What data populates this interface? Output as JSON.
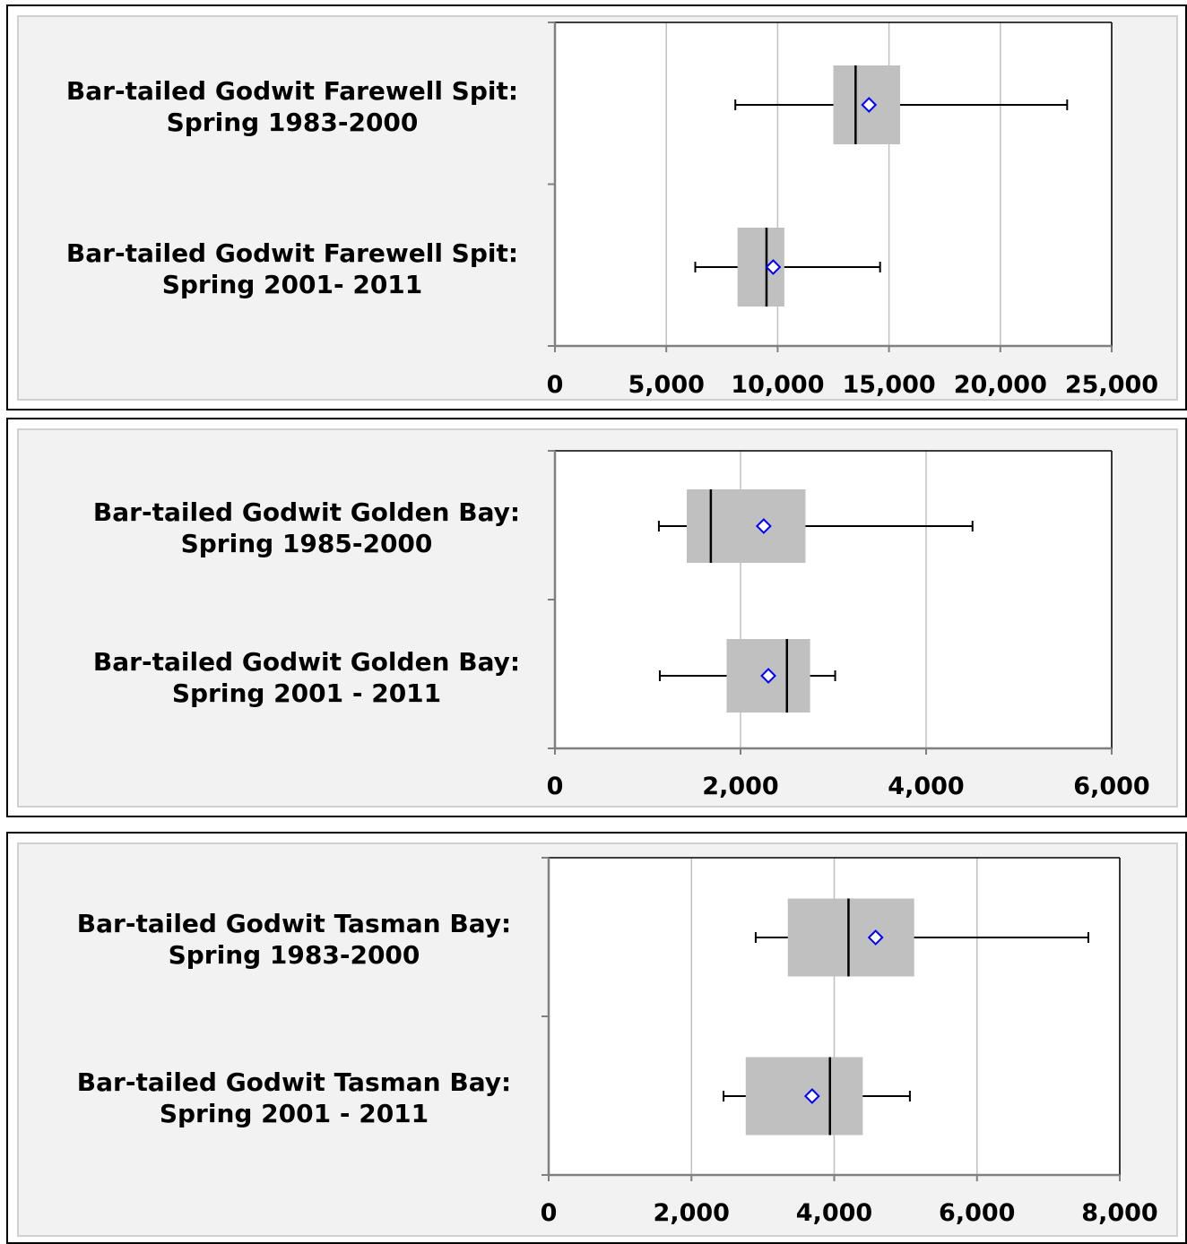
{
  "chart_data": [
    {
      "type": "boxplot",
      "orientation": "horizontal",
      "xlim": [
        0,
        25000
      ],
      "ticks": [
        0,
        5000,
        10000,
        15000,
        20000,
        25000
      ],
      "tick_labels": [
        "0",
        "5,000",
        "10,000",
        "15,000",
        "20,000",
        "25,000"
      ],
      "grid": true,
      "categories": [
        {
          "label_lines": [
            "Bar-tailed Godwit Farewell Spit:",
            "Spring 1983-2000"
          ],
          "min": 8100,
          "q1": 12500,
          "median": 13500,
          "q3": 15500,
          "max": 23000,
          "mean": 14100
        },
        {
          "label_lines": [
            "Bar-tailed Godwit Farewell Spit:",
            "Spring 2001- 2011"
          ],
          "min": 6300,
          "q1": 8200,
          "median": 9500,
          "q3": 10300,
          "max": 14600,
          "mean": 9800
        }
      ]
    },
    {
      "type": "boxplot",
      "orientation": "horizontal",
      "xlim": [
        0,
        6000
      ],
      "ticks": [
        0,
        2000,
        4000,
        6000
      ],
      "tick_labels": [
        "0",
        "2,000",
        "4,000",
        "6,000"
      ],
      "grid": true,
      "categories": [
        {
          "label_lines": [
            "Bar-tailed Godwit Golden Bay:",
            "Spring 1985-2000"
          ],
          "min": 1120,
          "q1": 1420,
          "median": 1680,
          "q3": 2700,
          "max": 4500,
          "mean": 2250
        },
        {
          "label_lines": [
            "Bar-tailed Godwit Golden Bay:",
            "Spring 2001 - 2011"
          ],
          "min": 1130,
          "q1": 1850,
          "median": 2500,
          "q3": 2750,
          "max": 3020,
          "mean": 2300
        }
      ]
    },
    {
      "type": "boxplot",
      "orientation": "horizontal",
      "xlim": [
        0,
        8000
      ],
      "ticks": [
        0,
        2000,
        4000,
        6000,
        8000
      ],
      "tick_labels": [
        "0",
        "2,000",
        "4,000",
        "6,000",
        "8,000"
      ],
      "grid": true,
      "categories": [
        {
          "label_lines": [
            "Bar-tailed Godwit Tasman Bay:",
            "Spring 1983-2000"
          ],
          "min": 2900,
          "q1": 3350,
          "median": 4200,
          "q3": 5120,
          "max": 7560,
          "mean": 4580
        },
        {
          "label_lines": [
            "Bar-tailed Godwit Tasman Bay:",
            "Spring 2001 - 2011"
          ],
          "min": 2450,
          "q1": 2760,
          "median": 3940,
          "q3": 4400,
          "max": 5060,
          "mean": 3690
        }
      ]
    }
  ],
  "colors": {
    "box": "#c0c0c0",
    "mean_marker": "#0000ff",
    "grid": "#c0c0c0",
    "panel_bg": "#f2f2f2"
  }
}
